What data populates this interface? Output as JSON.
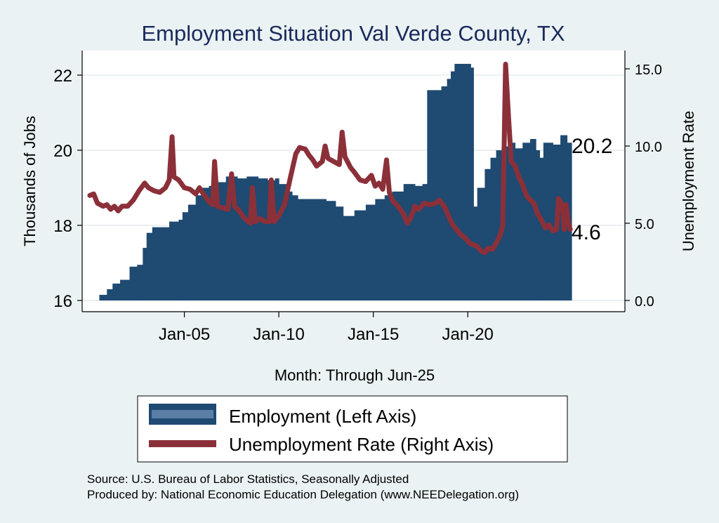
{
  "chart_data": {
    "type": "bar+line",
    "title": "Employment Situation Val Verde  County, TX",
    "xlabel": "Month: Through Jun-25",
    "ylabel_left": "Thousands of Jobs",
    "ylabel_right": "Unemployment Rate",
    "x_ticks": [
      "Jan-05",
      "Jan-10",
      "Jan-15",
      "Jan-20"
    ],
    "x_tick_years": [
      2005,
      2010,
      2015,
      2020
    ],
    "x_range": [
      2000.0,
      2025.417
    ],
    "left_ticks": [
      "16",
      "18",
      "20",
      "22"
    ],
    "left_tick_values": [
      16,
      18,
      20,
      22
    ],
    "left_range": [
      16,
      22.4
    ],
    "right_ticks": [
      "0.0",
      "5.0",
      "10.0",
      "15.0"
    ],
    "right_tick_values": [
      0,
      5,
      10,
      15
    ],
    "right_range": [
      0,
      15.5
    ],
    "end_labels": {
      "employment": "20.2",
      "unemployment": "4.6"
    },
    "series": [
      {
        "name": "Employment (Left Axis)",
        "axis": "left",
        "kind": "bar",
        "color": "#1f4a72",
        "points": [
          [
            2000.0,
            15.95
          ],
          [
            2000.5,
            16.15
          ],
          [
            2000.9,
            16.3
          ],
          [
            2001.2,
            16.45
          ],
          [
            2001.6,
            16.55
          ],
          [
            2002.1,
            16.9
          ],
          [
            2002.5,
            16.95
          ],
          [
            2002.8,
            17.4
          ],
          [
            2003.0,
            17.8
          ],
          [
            2003.3,
            17.95
          ],
          [
            2003.9,
            17.95
          ],
          [
            2004.2,
            18.1
          ],
          [
            2004.7,
            18.15
          ],
          [
            2004.9,
            18.35
          ],
          [
            2005.2,
            18.55
          ],
          [
            2005.6,
            18.8
          ],
          [
            2005.9,
            19.0
          ],
          [
            2006.3,
            19.05
          ],
          [
            2006.8,
            19.15
          ],
          [
            2007.2,
            19.3
          ],
          [
            2007.8,
            19.25
          ],
          [
            2008.3,
            19.3
          ],
          [
            2008.9,
            19.25
          ],
          [
            2009.4,
            19.2
          ],
          [
            2009.8,
            19.25
          ],
          [
            2010.0,
            19.1
          ],
          [
            2010.4,
            18.9
          ],
          [
            2010.7,
            18.8
          ],
          [
            2011.0,
            18.7
          ],
          [
            2012.0,
            18.7
          ],
          [
            2012.5,
            18.65
          ],
          [
            2013.0,
            18.5
          ],
          [
            2013.4,
            18.25
          ],
          [
            2014.0,
            18.4
          ],
          [
            2014.6,
            18.55
          ],
          [
            2015.1,
            18.7
          ],
          [
            2015.6,
            18.8
          ],
          [
            2016.0,
            18.9
          ],
          [
            2016.6,
            19.1
          ],
          [
            2017.2,
            19.05
          ],
          [
            2017.6,
            19.1
          ],
          [
            2017.85,
            21.6
          ],
          [
            2018.3,
            21.6
          ],
          [
            2018.6,
            21.7
          ],
          [
            2018.9,
            21.9
          ],
          [
            2019.1,
            22.1
          ],
          [
            2019.3,
            22.3
          ],
          [
            2019.7,
            22.3
          ],
          [
            2020.15,
            22.2
          ],
          [
            2020.3,
            18.5
          ],
          [
            2020.5,
            19.0
          ],
          [
            2020.9,
            19.5
          ],
          [
            2021.2,
            19.8
          ],
          [
            2021.5,
            20.0
          ],
          [
            2021.8,
            20.1
          ],
          [
            2022.2,
            20.2
          ],
          [
            2022.5,
            20.05
          ],
          [
            2022.9,
            20.2
          ],
          [
            2023.3,
            20.3
          ],
          [
            2023.6,
            20.0
          ],
          [
            2023.8,
            19.8
          ],
          [
            2024.0,
            20.2
          ],
          [
            2024.5,
            20.15
          ],
          [
            2024.9,
            20.4
          ],
          [
            2025.25,
            20.2
          ]
        ]
      },
      {
        "name": "Unemployment Rate (Right Axis)",
        "axis": "right",
        "kind": "line",
        "color": "#8b3039",
        "points": [
          [
            2000.0,
            6.8
          ],
          [
            2000.2,
            6.9
          ],
          [
            2000.4,
            6.3
          ],
          [
            2000.7,
            6.1
          ],
          [
            2000.9,
            6.2
          ],
          [
            2001.1,
            5.9
          ],
          [
            2001.3,
            6.1
          ],
          [
            2001.5,
            5.8
          ],
          [
            2001.7,
            6.1
          ],
          [
            2002.0,
            6.1
          ],
          [
            2002.3,
            6.5
          ],
          [
            2002.6,
            7.1
          ],
          [
            2002.9,
            7.6
          ],
          [
            2003.1,
            7.3
          ],
          [
            2003.4,
            7.1
          ],
          [
            2003.7,
            7.0
          ],
          [
            2004.0,
            7.3
          ],
          [
            2004.2,
            7.8
          ],
          [
            2004.35,
            10.6
          ],
          [
            2004.45,
            8.0
          ],
          [
            2004.7,
            7.8
          ],
          [
            2005.0,
            7.3
          ],
          [
            2005.3,
            7.2
          ],
          [
            2005.6,
            6.9
          ],
          [
            2005.8,
            7.3
          ],
          [
            2006.0,
            6.9
          ],
          [
            2006.3,
            6.4
          ],
          [
            2006.5,
            6.2
          ],
          [
            2006.6,
            9.0
          ],
          [
            2006.75,
            6.1
          ],
          [
            2007.0,
            6.0
          ],
          [
            2007.3,
            5.9
          ],
          [
            2007.5,
            8.2
          ],
          [
            2007.65,
            6.1
          ],
          [
            2007.9,
            5.8
          ],
          [
            2008.2,
            5.3
          ],
          [
            2008.5,
            5.0
          ],
          [
            2008.6,
            7.3
          ],
          [
            2008.75,
            5.1
          ],
          [
            2009.0,
            5.3
          ],
          [
            2009.3,
            5.1
          ],
          [
            2009.5,
            5.1
          ],
          [
            2009.6,
            7.8
          ],
          [
            2009.75,
            5.1
          ],
          [
            2010.0,
            5.5
          ],
          [
            2010.3,
            6.2
          ],
          [
            2010.6,
            7.9
          ],
          [
            2010.9,
            9.5
          ],
          [
            2011.1,
            9.9
          ],
          [
            2011.4,
            9.8
          ],
          [
            2011.6,
            9.4
          ],
          [
            2011.8,
            9.1
          ],
          [
            2012.0,
            8.7
          ],
          [
            2012.3,
            9.0
          ],
          [
            2012.45,
            10.0
          ],
          [
            2012.6,
            9.2
          ],
          [
            2012.9,
            9.0
          ],
          [
            2013.2,
            8.8
          ],
          [
            2013.35,
            10.9
          ],
          [
            2013.5,
            9.3
          ],
          [
            2013.8,
            8.6
          ],
          [
            2014.0,
            8.3
          ],
          [
            2014.3,
            7.8
          ],
          [
            2014.6,
            7.7
          ],
          [
            2014.9,
            8.1
          ],
          [
            2015.1,
            7.4
          ],
          [
            2015.3,
            7.6
          ],
          [
            2015.5,
            7.2
          ],
          [
            2015.7,
            9.1
          ],
          [
            2015.85,
            7.0
          ],
          [
            2016.0,
            6.5
          ],
          [
            2016.3,
            6.1
          ],
          [
            2016.6,
            5.6
          ],
          [
            2016.8,
            5.0
          ],
          [
            2017.0,
            5.4
          ],
          [
            2017.2,
            6.1
          ],
          [
            2017.4,
            5.9
          ],
          [
            2017.7,
            6.3
          ],
          [
            2018.0,
            6.2
          ],
          [
            2018.3,
            6.3
          ],
          [
            2018.5,
            6.5
          ],
          [
            2018.8,
            6.0
          ],
          [
            2019.0,
            5.4
          ],
          [
            2019.2,
            4.9
          ],
          [
            2019.4,
            4.6
          ],
          [
            2019.6,
            4.3
          ],
          [
            2019.9,
            4.0
          ],
          [
            2020.1,
            3.7
          ],
          [
            2020.3,
            3.6
          ],
          [
            2020.5,
            3.5
          ],
          [
            2020.7,
            3.2
          ],
          [
            2020.9,
            3.1
          ],
          [
            2021.1,
            3.4
          ],
          [
            2021.3,
            3.3
          ],
          [
            2021.5,
            3.7
          ],
          [
            2021.7,
            4.2
          ],
          [
            2021.85,
            4.8
          ],
          [
            2022.0,
            15.3
          ],
          [
            2022.15,
            12.0
          ],
          [
            2022.3,
            9.0
          ],
          [
            2022.5,
            8.7
          ],
          [
            2022.7,
            8.0
          ],
          [
            2022.9,
            7.5
          ],
          [
            2023.1,
            6.8
          ],
          [
            2023.3,
            6.5
          ],
          [
            2023.5,
            6.3
          ],
          [
            2023.7,
            5.6
          ],
          [
            2023.9,
            5.2
          ],
          [
            2024.1,
            4.7
          ],
          [
            2024.3,
            4.9
          ],
          [
            2024.5,
            4.5
          ],
          [
            2024.7,
            4.6
          ],
          [
            2024.8,
            6.6
          ],
          [
            2025.0,
            6.2
          ],
          [
            2025.1,
            4.6
          ],
          [
            2025.2,
            6.2
          ],
          [
            2025.3,
            5.2
          ],
          [
            2025.42,
            4.6
          ]
        ]
      }
    ]
  },
  "legend": {
    "employment_label": "Employment (Left Axis)",
    "unemployment_label": "Unemployment Rate (Right Axis)"
  },
  "footer": {
    "source": "Source: U.S. Bureau of Labor Statistics, Seasonally Adjusted",
    "produced": "Produced by: National Economic Education Delegation (www.NEEDelegation.org)"
  },
  "colors": {
    "background": "#eaf2f3",
    "plot_background": "#ffffff",
    "employment": "#1f4a72",
    "unemployment": "#8b3039",
    "title": "#1a2a5c"
  }
}
